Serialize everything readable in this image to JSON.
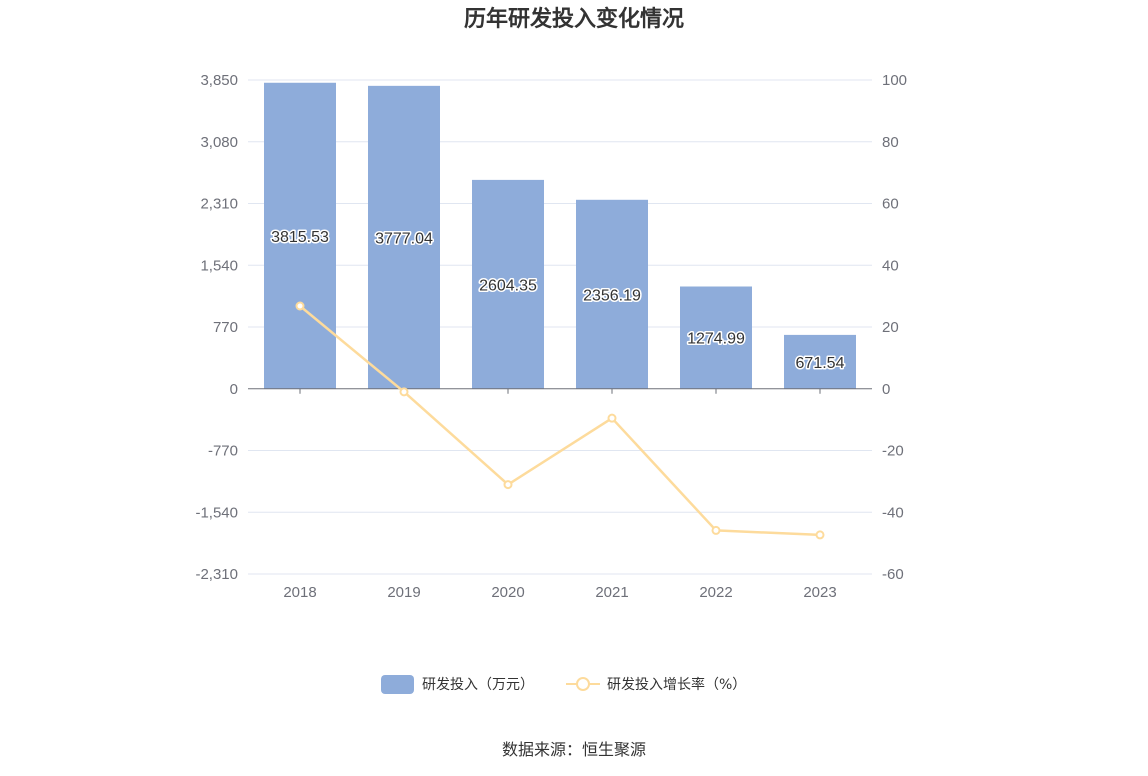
{
  "title": "历年研发投入变化情况",
  "source": "数据来源：恒生聚源",
  "chart_data": {
    "type": "bar",
    "categories": [
      "2018",
      "2019",
      "2020",
      "2021",
      "2022",
      "2023"
    ],
    "series": [
      {
        "name": "研发投入（万元）",
        "type": "bar",
        "axis": "left",
        "values": [
          3815.53,
          3777.04,
          2604.35,
          2356.19,
          1274.99,
          671.54
        ],
        "labels": [
          "3815.53",
          "3777.04",
          "2604.35",
          "2356.19",
          "1274.99",
          "671.54"
        ],
        "color": "#8eacda"
      },
      {
        "name": "研发投入增长率（%）",
        "type": "line",
        "axis": "right",
        "values": [
          26.8,
          -1.01,
          -31.05,
          -9.53,
          -45.89,
          -47.33
        ],
        "color": "#fddb9c"
      }
    ],
    "y_left": {
      "min": -2310,
      "max": 3850,
      "ticks": [
        3850,
        3080,
        2310,
        1540,
        770,
        0,
        -770,
        -1540,
        -2310
      ],
      "tick_labels": [
        "3,850",
        "3,080",
        "2,310",
        "1,540",
        "770",
        "0",
        "-770",
        "-1,540",
        "-2,310"
      ]
    },
    "y_right": {
      "min": -60,
      "max": 100,
      "ticks": [
        100,
        80,
        60,
        40,
        20,
        0,
        -20,
        -40,
        -60
      ],
      "tick_labels": [
        "100",
        "80",
        "60",
        "40",
        "20",
        "0",
        "-20",
        "-40",
        "-60"
      ]
    },
    "grid": true,
    "legend_position": "bottom-center",
    "title": "历年研发投入变化情况"
  }
}
